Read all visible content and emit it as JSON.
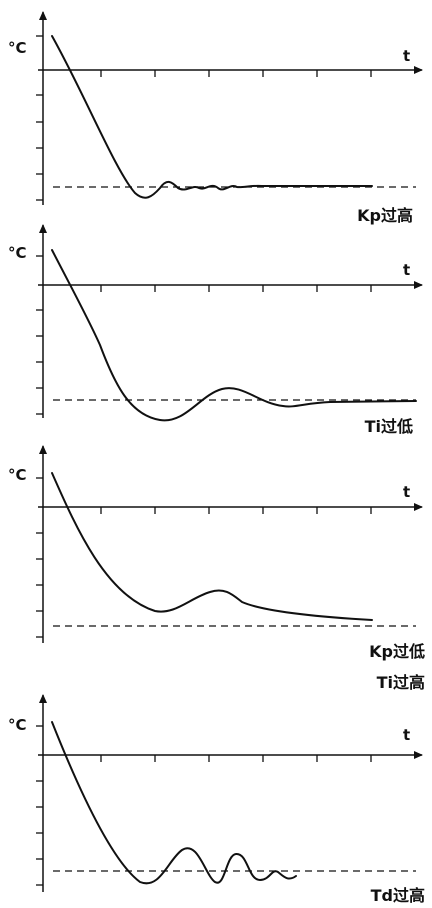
{
  "panels": [
    {
      "y_unit": "°C",
      "x_label": "t",
      "caption_lines": [
        "Kp过高"
      ]
    },
    {
      "y_unit": "°C",
      "x_label": "t",
      "caption_lines": [
        "Ti过低"
      ]
    },
    {
      "y_unit": "°C",
      "x_label": "t",
      "caption_lines": [
        "Kp过低",
        "Ti过高"
      ]
    },
    {
      "y_unit": "°C",
      "x_label": "t",
      "caption_lines": [
        "Td过高"
      ]
    }
  ]
}
